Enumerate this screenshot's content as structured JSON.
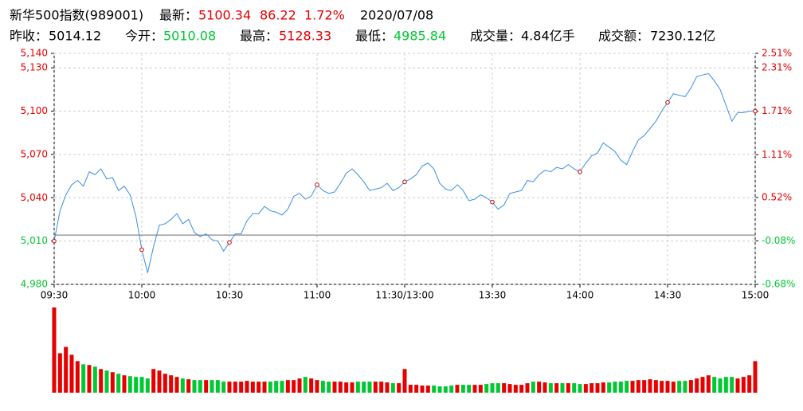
{
  "quote": {
    "title": "新华500指数(989001)",
    "last_label": "最新：",
    "last": "5100.34",
    "change": "86.22",
    "change_pct": "1.72%",
    "date": "2020/07/08",
    "stats": [
      {
        "label": "昨收：",
        "value": "5014.12"
      },
      {
        "label": "今开：",
        "value": "5010.08"
      },
      {
        "label": "最高：",
        "value": "5128.33"
      },
      {
        "label": "最低：",
        "value": "4985.84"
      },
      {
        "label": "成交量：",
        "value": "4.84亿手"
      },
      {
        "label": "成交额：",
        "value": "7230.12亿"
      }
    ]
  },
  "chart_data": {
    "type": "line",
    "x": [
      0,
      2,
      4,
      6,
      8,
      10,
      12,
      14,
      16,
      18,
      20,
      22,
      24,
      26,
      28,
      30,
      32,
      34,
      36,
      38,
      40,
      42,
      44,
      46,
      48,
      50,
      52,
      54,
      56,
      58,
      60,
      62,
      64,
      66,
      68,
      70,
      72,
      74,
      76,
      78,
      80,
      82,
      84,
      86,
      88,
      90,
      92,
      94,
      96,
      98,
      100,
      102,
      104,
      106,
      108,
      110,
      112,
      114,
      116,
      118,
      120,
      122,
      124,
      126,
      128,
      130,
      132,
      134,
      136,
      138,
      140,
      142,
      144,
      146,
      148,
      150,
      152,
      154,
      156,
      158,
      160,
      162,
      164,
      166,
      168,
      170,
      172,
      174,
      176,
      178,
      180,
      182,
      184,
      186,
      188,
      190,
      192,
      194,
      196,
      198,
      200,
      202,
      204,
      206,
      208,
      210,
      212,
      214,
      216,
      218,
      220,
      222,
      224,
      226,
      228,
      230,
      232,
      234,
      236,
      238,
      240
    ],
    "series": [
      {
        "color": "#3a8ee6",
        "values": [
          5010,
          5031,
          5042,
          5049,
          5052,
          5048,
          5058,
          5056,
          5060,
          5053,
          5054,
          5045,
          5048,
          5042,
          5027,
          5004,
          4988,
          5006,
          5021,
          5022,
          5025,
          5029,
          5022,
          5025,
          5016,
          5013,
          5015,
          5011,
          5010,
          5003,
          5009,
          5015,
          5015,
          5024,
          5029,
          5029,
          5034,
          5031,
          5030,
          5028,
          5032,
          5041,
          5043,
          5039,
          5041,
          5049,
          5045,
          5043,
          5044,
          5050,
          5057,
          5060,
          5056,
          5051,
          5045,
          5046,
          5047,
          5050,
          5045,
          5047,
          5051,
          5053,
          5056,
          5062,
          5064,
          5060,
          5050,
          5046,
          5045,
          5049,
          5045,
          5038,
          5039,
          5042,
          5040,
          5037,
          5032,
          5035,
          5043,
          5044,
          5045,
          5052,
          5051,
          5056,
          5059,
          5058,
          5061,
          5060,
          5063,
          5060,
          5058,
          5064,
          5069,
          5071,
          5078,
          5075,
          5072,
          5066,
          5063,
          5072,
          5080,
          5083,
          5088,
          5093,
          5100,
          5106,
          5112,
          5111,
          5110,
          5116,
          5124,
          5125,
          5126,
          5121,
          5115,
          5104,
          5093,
          5099,
          5099,
          5100,
          5100
        ]
      }
    ],
    "baseline": 5014.12,
    "xlim": [
      0,
      240
    ],
    "xticks": [
      {
        "value": 0,
        "label": "09:30"
      },
      {
        "value": 30,
        "label": "10:00"
      },
      {
        "value": 60,
        "label": "10:30"
      },
      {
        "value": 90,
        "label": "11:00"
      },
      {
        "value": 120,
        "label": "11:30/13:00"
      },
      {
        "value": 150,
        "label": "13:30"
      },
      {
        "value": 180,
        "label": "14:00"
      },
      {
        "value": 210,
        "label": "14:30"
      },
      {
        "value": 240,
        "label": "15:00"
      }
    ],
    "ylim": [
      4980,
      5140
    ],
    "yticks": [
      {
        "value": 5140,
        "label": "5,140"
      },
      {
        "value": 5130,
        "label": "5,130"
      },
      {
        "value": 5100,
        "label": "5,100"
      },
      {
        "value": 5070,
        "label": "5,070"
      },
      {
        "value": 5040,
        "label": "5,040"
      },
      {
        "value": 5010,
        "label": "5,010"
      },
      {
        "value": 4980,
        "label": "4,980"
      }
    ],
    "y2lim": [
      -0.68,
      2.51
    ],
    "y2ticks": [
      {
        "value": 2.51,
        "label": "2.51%"
      },
      {
        "value": 2.31,
        "label": "2.31%"
      },
      {
        "value": 1.71,
        "label": "1.71%"
      },
      {
        "value": 1.11,
        "label": "1.11%"
      },
      {
        "value": 0.52,
        "label": "0.52%"
      },
      {
        "value": -0.08,
        "label": "-0.08%"
      },
      {
        "value": -0.68,
        "label": "-0.68%"
      }
    ],
    "up_color": "#e60000",
    "down_color": "#00c832",
    "grid": true,
    "volume": {
      "ylim": [
        0,
        108
      ],
      "values": [
        108,
        50,
        58,
        48,
        40,
        36,
        35,
        33,
        30,
        28,
        26,
        24,
        22,
        21,
        20,
        20,
        18,
        30,
        28,
        24,
        22,
        20,
        18,
        17,
        16,
        16,
        16,
        16,
        16,
        14,
        14,
        14,
        14,
        15,
        14,
        14,
        14,
        14,
        15,
        15,
        16,
        16,
        18,
        20,
        18,
        16,
        15,
        14,
        14,
        14,
        13,
        13,
        14,
        14,
        14,
        14,
        14,
        13,
        12,
        12,
        30,
        10,
        10,
        9,
        9,
        9,
        8,
        8,
        9,
        10,
        10,
        10,
        10,
        10,
        11,
        12,
        12,
        12,
        11,
        10,
        10,
        12,
        14,
        14,
        13,
        12,
        12,
        12,
        12,
        12,
        11,
        11,
        12,
        12,
        13,
        13,
        14,
        14,
        15,
        15,
        16,
        16,
        17,
        16,
        15,
        15,
        14,
        15,
        15,
        16,
        18,
        20,
        22,
        20,
        18,
        20,
        20,
        18,
        20,
        22,
        40
      ]
    }
  }
}
